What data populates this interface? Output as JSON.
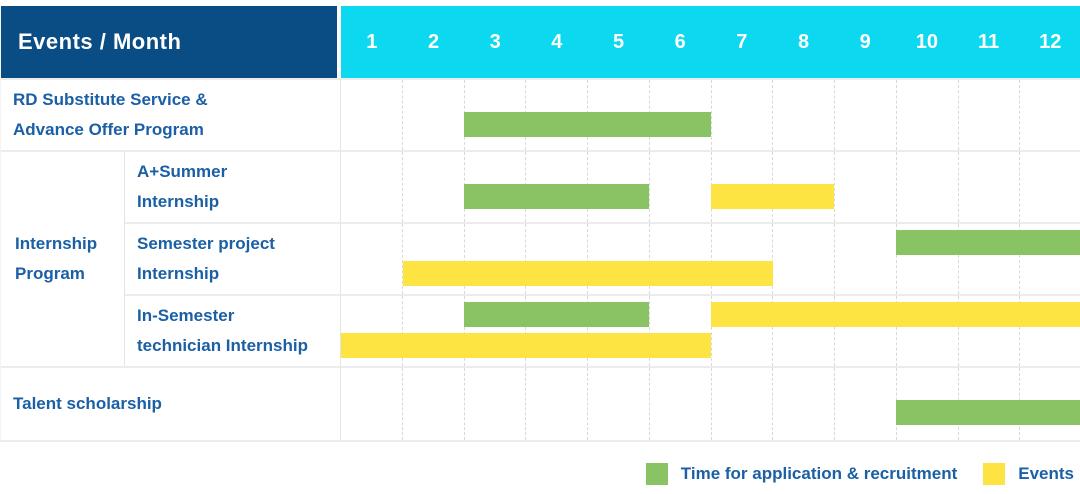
{
  "colors": {
    "header_bg": "#0a4d85",
    "months_bg": "#0cd8ef",
    "label_text": "#1b5fa5",
    "recruitment": "#8ac364",
    "event": "#fee443"
  },
  "chart_data": {
    "type": "bar",
    "subtype": "gantt",
    "title": "Events / Month",
    "x_categories": [
      "1",
      "2",
      "3",
      "4",
      "5",
      "6",
      "7",
      "8",
      "9",
      "10",
      "11",
      "12"
    ],
    "x_unit": "month",
    "x_range": [
      1,
      12
    ],
    "grid": true,
    "legend_position": "bottom-right",
    "series": [
      {
        "kind": "recruitment",
        "name": "Time for application & recruitment",
        "color": "#8ac364"
      },
      {
        "kind": "event",
        "name": "Events",
        "color": "#fee443"
      }
    ],
    "rows": [
      {
        "id": "rd-substitute-service",
        "group": "",
        "label_lines": [
          "RD Substitute Service &",
          "Advance Offer Program"
        ],
        "bars": [
          {
            "kind": "recruitment",
            "start_month": 3,
            "end_month": 6,
            "lane": "mid"
          }
        ]
      },
      {
        "id": "a-plus-summer-internship",
        "group": "Internship Program",
        "label_lines": [
          "A+Summer",
          "Internship"
        ],
        "bars": [
          {
            "kind": "recruitment",
            "start_month": 3,
            "end_month": 5,
            "lane": "mid"
          },
          {
            "kind": "event",
            "start_month": 7,
            "end_month": 8,
            "lane": "mid"
          }
        ]
      },
      {
        "id": "semester-project-internship",
        "group": "Internship Program",
        "label_lines": [
          "Semester project",
          "Internship"
        ],
        "bars": [
          {
            "kind": "recruitment",
            "start_month": 10,
            "end_month": 12,
            "lane": "top"
          },
          {
            "kind": "event",
            "start_month": 2,
            "end_month": 7,
            "lane": "bottom"
          }
        ]
      },
      {
        "id": "in-semester-technician-internship",
        "group": "Internship Program",
        "label_lines": [
          "In-Semester",
          "technician Internship"
        ],
        "bars": [
          {
            "kind": "recruitment",
            "start_month": 3,
            "end_month": 5,
            "lane": "top"
          },
          {
            "kind": "event",
            "start_month": 7,
            "end_month": 12,
            "lane": "top"
          },
          {
            "kind": "event",
            "start_month": 1,
            "end_month": 6,
            "lane": "bottom"
          }
        ]
      },
      {
        "id": "talent-scholarship",
        "group": "",
        "label_lines": [
          "Talent scholarship"
        ],
        "bars": [
          {
            "kind": "recruitment",
            "start_month": 10,
            "end_month": 12,
            "lane": "mid"
          }
        ]
      }
    ]
  }
}
